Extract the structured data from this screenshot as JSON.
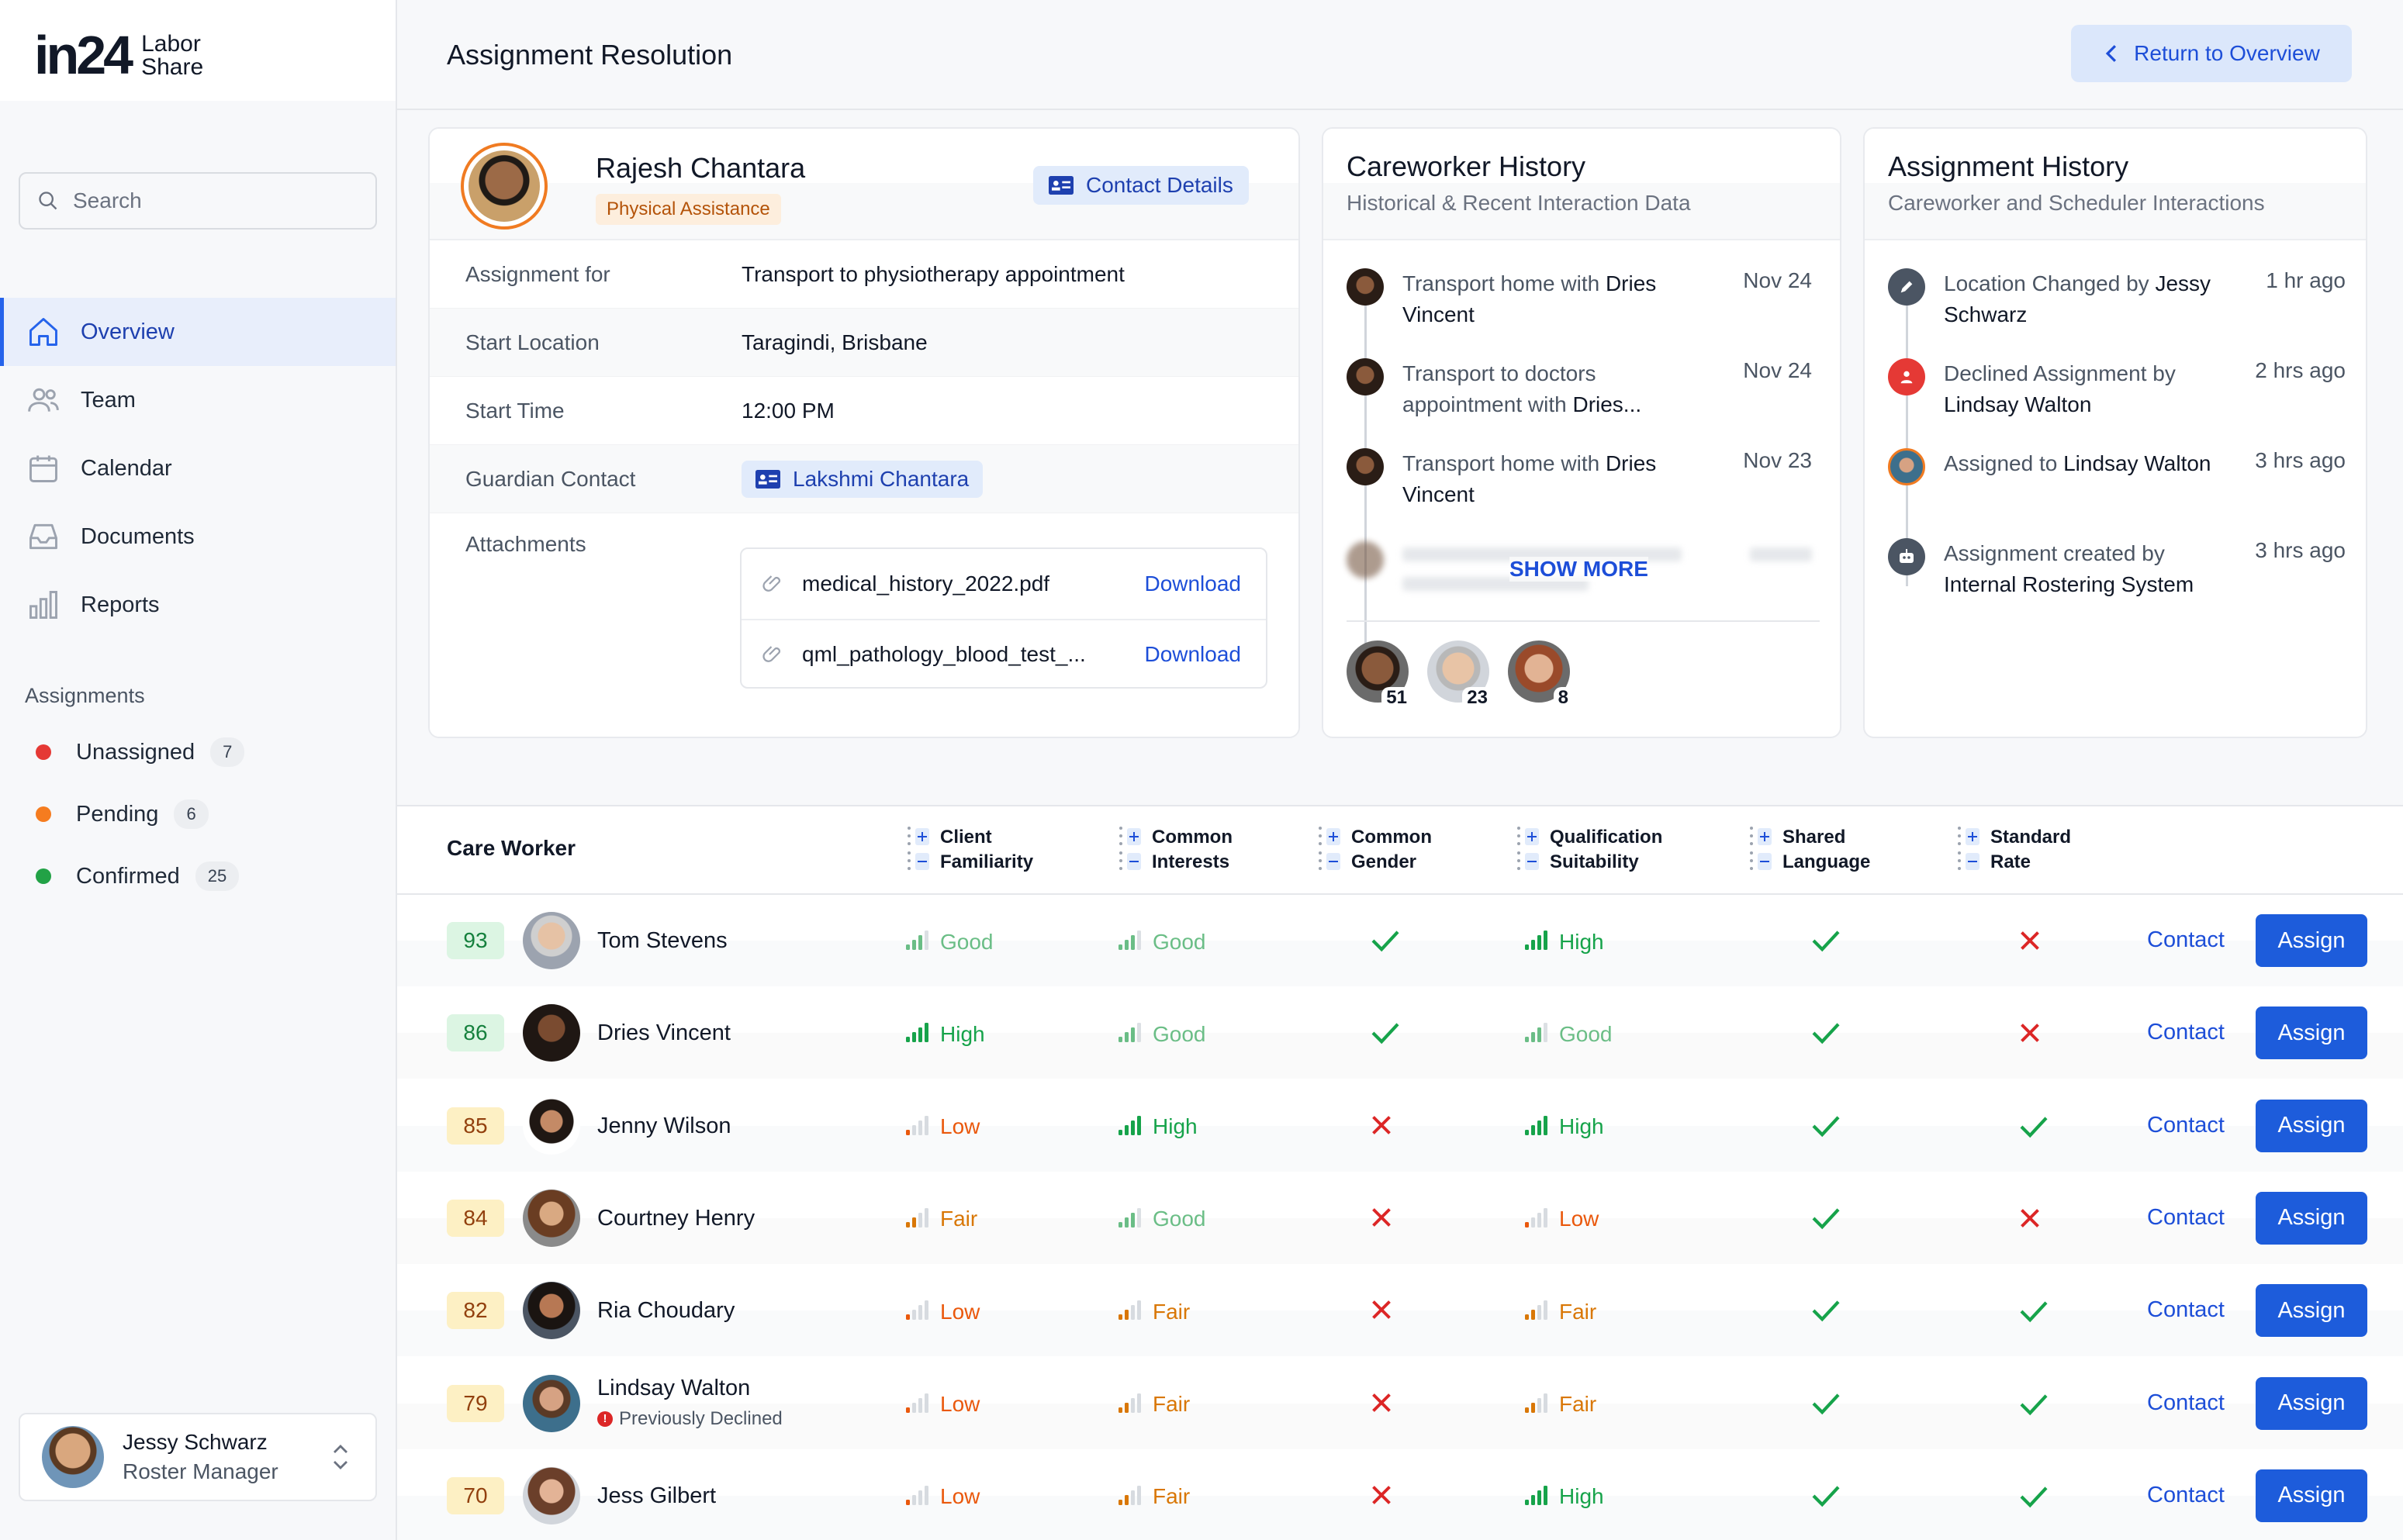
{
  "brand": {
    "logo_text": "in24",
    "logo_sub_1": "Labor",
    "logo_sub_2": "Share"
  },
  "search": {
    "placeholder": "Search"
  },
  "nav": [
    {
      "label": "Overview",
      "icon": "home-icon"
    },
    {
      "label": "Team",
      "icon": "users-icon"
    },
    {
      "label": "Calendar",
      "icon": "calendar-icon"
    },
    {
      "label": "Documents",
      "icon": "inbox-icon"
    },
    {
      "label": "Reports",
      "icon": "bar-chart-icon"
    }
  ],
  "assignments": {
    "title": "Assignments",
    "items": [
      {
        "label": "Unassigned",
        "count": "7",
        "color": "#e53935"
      },
      {
        "label": "Pending",
        "count": "6",
        "color": "#f57c1f"
      },
      {
        "label": "Confirmed",
        "count": "25",
        "color": "#22a246"
      }
    ]
  },
  "user": {
    "name": "Jessy Schwarz",
    "role": "Roster Manager"
  },
  "header": {
    "title": "Assignment Resolution",
    "return_label": "Return to Overview"
  },
  "client": {
    "name": "Rajesh Chantara",
    "tag": "Physical Assistance",
    "contact_label": "Contact Details",
    "rows": [
      {
        "label": "Assignment for",
        "value": "Transport to physiotherapy appointment"
      },
      {
        "label": "Start Location",
        "value": "Taragindi, Brisbane"
      },
      {
        "label": "Start Time",
        "value": "12:00 PM"
      },
      {
        "label": "Guardian Contact",
        "value": "Lakshmi Chantara"
      }
    ],
    "attachments_label": "Attachments",
    "attachments": [
      {
        "name": "medical_history_2022.pdf",
        "action": "Download"
      },
      {
        "name": "qml_pathology_blood_test_...",
        "action": "Download"
      }
    ]
  },
  "careworker_history": {
    "title": "Careworker History",
    "subtitle": "Historical & Recent Interaction Data",
    "items": [
      {
        "pre": "Transport home with ",
        "bold": "Dries Vincent",
        "date": "Nov 24"
      },
      {
        "pre": "Transport to doctors appointment with ",
        "bold": "Dries...",
        "date": "Nov 24"
      },
      {
        "pre": "Transport home with ",
        "bold": "Dries Vincent",
        "date": "Nov 23"
      }
    ],
    "show_more": "SHOW MORE",
    "avatars": [
      "51",
      "23",
      "8"
    ]
  },
  "assignment_history": {
    "title": "Assignment History",
    "subtitle": "Careworker and Scheduler Interactions",
    "items": [
      {
        "pre": "Location Changed by ",
        "bold": "Jessy Schwarz",
        "date": "1 hr ago",
        "icon": "pencil-icon"
      },
      {
        "pre": "Declined Assignment by ",
        "bold": "Lindsay Walton",
        "date": "2 hrs ago",
        "icon": "user-declined-icon"
      },
      {
        "pre": "Assigned to ",
        "bold": "Lindsay Walton",
        "date": "3 hrs ago",
        "icon": "avatar"
      },
      {
        "pre": "Assignment created by ",
        "bold": "Internal Rostering System",
        "date": "3 hrs ago",
        "icon": "system-icon"
      }
    ]
  },
  "table": {
    "care_worker_label": "Care Worker",
    "columns": [
      [
        "Client",
        "Familiarity"
      ],
      [
        "Common",
        "Interests"
      ],
      [
        "Common",
        "Gender"
      ],
      [
        "Qualification",
        "Suitability"
      ],
      [
        "Shared",
        "Language"
      ],
      [
        "Standard",
        "Rate"
      ]
    ],
    "contact_label": "Contact",
    "assign_label": "Assign",
    "rows": [
      {
        "score": "93",
        "name": "Tom Stevens",
        "note": "",
        "fam": "Good",
        "int": "Good",
        "gender": true,
        "qual": "High",
        "lang": true,
        "rate": false
      },
      {
        "score": "86",
        "name": "Dries Vincent",
        "note": "",
        "fam": "High",
        "int": "Good",
        "gender": true,
        "qual": "Good",
        "lang": true,
        "rate": false
      },
      {
        "score": "85",
        "name": "Jenny Wilson",
        "note": "",
        "fam": "Low",
        "int": "High",
        "gender": false,
        "qual": "High",
        "lang": true,
        "rate": true
      },
      {
        "score": "84",
        "name": "Courtney Henry",
        "note": "",
        "fam": "Fair",
        "int": "Good",
        "gender": false,
        "qual": "Low",
        "lang": true,
        "rate": false
      },
      {
        "score": "82",
        "name": "Ria Choudary",
        "note": "",
        "fam": "Low",
        "int": "Fair",
        "gender": false,
        "qual": "Fair",
        "lang": true,
        "rate": true
      },
      {
        "score": "79",
        "name": "Lindsay Walton",
        "note": "Previously Declined",
        "fam": "Low",
        "int": "Fair",
        "gender": false,
        "qual": "Fair",
        "lang": true,
        "rate": true
      },
      {
        "score": "70",
        "name": "Jess Gilbert",
        "note": "",
        "fam": "Low",
        "int": "Fair",
        "gender": false,
        "qual": "High",
        "lang": true,
        "rate": true
      }
    ]
  }
}
